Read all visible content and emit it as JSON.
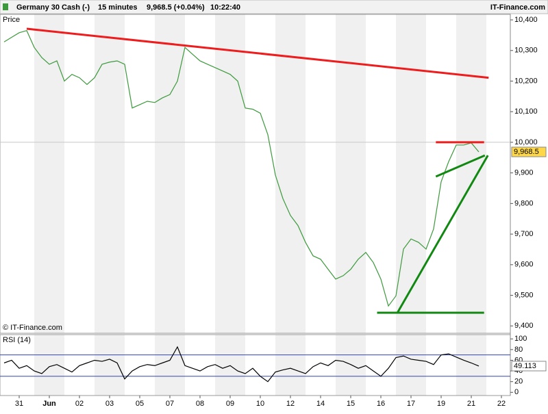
{
  "header": {
    "instrument": "Germany 30 Cash (-)",
    "timeframe": "15 minutes",
    "quote": "9,968.5 (+0.04%)",
    "time": "10:22:40",
    "brand": "IT-Finance.com"
  },
  "chart_data": [
    {
      "type": "line",
      "panel_label": "Price",
      "copyright": "© IT-Finance.com",
      "ylim": [
        9376,
        10418
      ],
      "yticks": [
        {
          "value": 10400,
          "label": "10,400"
        },
        {
          "value": 10300,
          "label": "10,300"
        },
        {
          "value": 10200,
          "label": "10,200"
        },
        {
          "value": 10100,
          "label": "10,100"
        },
        {
          "value": 10000,
          "label": "10,000"
        },
        {
          "value": 9900,
          "label": "9,900"
        },
        {
          "value": 9800,
          "label": "9,800"
        },
        {
          "value": 9700,
          "label": "9,700"
        },
        {
          "value": 9600,
          "label": "9,600"
        },
        {
          "value": 9500,
          "label": "9,500"
        },
        {
          "value": 9400,
          "label": "9,400"
        }
      ],
      "level_line": 10000,
      "last_label": "9,968.5",
      "series": [
        {
          "name": "Price",
          "color": "#3c9a3c",
          "values": [
            10328,
            10343,
            10358,
            10365,
            10310,
            10277,
            10255,
            10266,
            10200,
            10222,
            10211,
            10189,
            10211,
            10255,
            10262,
            10266,
            10255,
            10112,
            10123,
            10134,
            10130,
            10145,
            10156,
            10200,
            10310,
            10288,
            10266,
            10255,
            10244,
            10233,
            10222,
            10200,
            10112,
            10108,
            10095,
            10025,
            9893,
            9816,
            9761,
            9728,
            9673,
            9629,
            9618,
            9585,
            9553,
            9564,
            9585,
            9618,
            9640,
            9607,
            9553,
            9465,
            9498,
            9651,
            9684,
            9673,
            9651,
            9717,
            9871,
            9937,
            9991,
            9991,
            9998,
            9968.5,
            null,
            null,
            null
          ]
        }
      ],
      "trendlines": [
        {
          "color": "#ee1c1c",
          "x": [
            3,
            64.3
          ],
          "y": [
            10371,
            10211
          ]
        },
        {
          "color": "#ee1c1c",
          "x": [
            57.3,
            63.7
          ],
          "y": [
            10000,
            10000
          ]
        },
        {
          "color": "#118811",
          "x": [
            57.3,
            63.8
          ],
          "y": [
            9888,
            9957
          ]
        },
        {
          "color": "#118811",
          "x": [
            52.2,
            64.2
          ],
          "y": [
            9443,
            9957
          ]
        },
        {
          "color": "#118811",
          "x": [
            49.5,
            63.7
          ],
          "y": [
            9443,
            9443
          ]
        }
      ]
    },
    {
      "type": "line",
      "panel_label": "RSI (14)",
      "ylim": [
        -6,
        108
      ],
      "yticks": [
        100,
        80,
        60,
        40,
        20,
        0
      ],
      "levels": [
        70,
        30
      ],
      "last_label": "49.113",
      "categories": [
        null,
        null,
        "31",
        null,
        null,
        null,
        "Jun",
        null,
        null,
        null,
        "02",
        null,
        null,
        null,
        "03",
        null,
        null,
        null,
        "05",
        null,
        null,
        null,
        "07",
        null,
        null,
        null,
        "08",
        null,
        null,
        null,
        "09",
        null,
        null,
        null,
        "10",
        null,
        null,
        null,
        "12",
        null,
        null,
        null,
        "14",
        null,
        null,
        null,
        "15",
        null,
        null,
        null,
        "16",
        null,
        null,
        null,
        "17",
        null,
        null,
        null,
        "19",
        null,
        null,
        null,
        "21",
        null,
        null,
        null,
        "22"
      ],
      "series": [
        {
          "name": "RSI",
          "color": "#000000",
          "values": [
            55,
            60,
            45,
            50,
            40,
            35,
            48,
            52,
            45,
            38,
            50,
            55,
            60,
            58,
            62,
            55,
            25,
            40,
            48,
            52,
            50,
            55,
            60,
            85,
            50,
            45,
            40,
            48,
            52,
            45,
            50,
            40,
            35,
            45,
            30,
            20,
            38,
            42,
            45,
            40,
            35,
            48,
            55,
            50,
            60,
            58,
            52,
            45,
            50,
            40,
            30,
            45,
            65,
            68,
            62,
            60,
            58,
            52,
            70,
            72,
            66,
            60,
            55,
            49.113,
            null,
            null,
            null
          ]
        }
      ]
    }
  ]
}
